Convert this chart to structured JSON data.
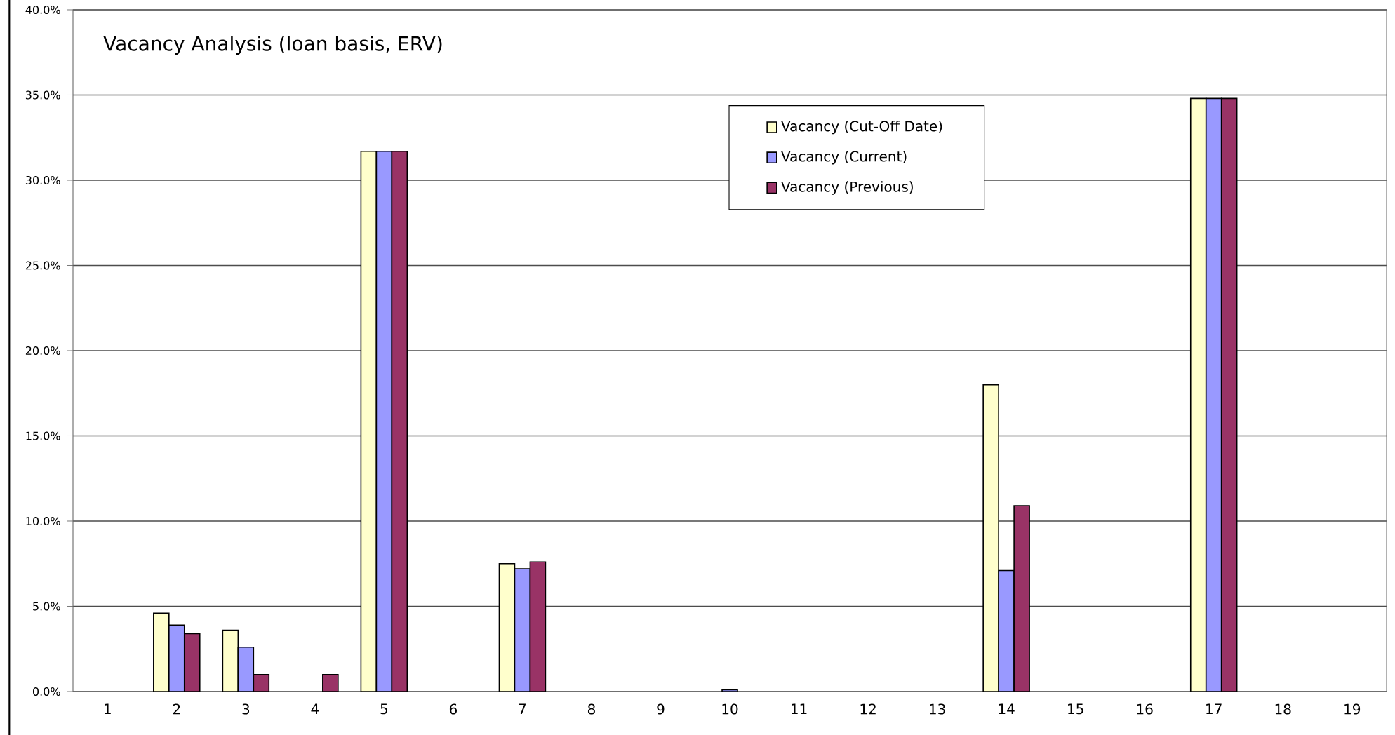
{
  "chart_data": {
    "type": "bar",
    "title": "Vacancy Analysis (loan basis, ERV)",
    "categories": [
      "1",
      "2",
      "3",
      "4",
      "5",
      "6",
      "7",
      "8",
      "9",
      "10",
      "11",
      "12",
      "13",
      "14",
      "15",
      "16",
      "17",
      "18",
      "19"
    ],
    "series": [
      {
        "name": "Vacancy (Cut-Off Date)",
        "color": "#ffffcc",
        "values": [
          0,
          4.6,
          3.6,
          0,
          31.7,
          0,
          7.5,
          0,
          0,
          0,
          0,
          0,
          0,
          18.0,
          0,
          0,
          34.8,
          0,
          0
        ]
      },
      {
        "name": "Vacancy (Current)",
        "color": "#9999ff",
        "values": [
          0,
          3.9,
          2.6,
          0,
          31.7,
          0,
          7.2,
          0,
          0,
          0.1,
          0,
          0,
          0,
          7.1,
          0,
          0,
          34.8,
          0,
          0
        ]
      },
      {
        "name": "Vacancy (Previous)",
        "color": "#993366",
        "values": [
          0,
          3.4,
          1.0,
          1.0,
          31.7,
          0,
          7.6,
          0,
          0,
          0,
          0,
          0,
          0,
          10.9,
          0,
          0,
          34.8,
          0,
          0
        ]
      }
    ],
    "ylim": [
      0,
      40
    ],
    "yticks": [
      {
        "value": 0,
        "label": "0.0%"
      },
      {
        "value": 5,
        "label": "5.0%"
      },
      {
        "value": 10,
        "label": "10.0%"
      },
      {
        "value": 15,
        "label": "15.0%"
      },
      {
        "value": 20,
        "label": "20.0%"
      },
      {
        "value": 25,
        "label": "25.0%"
      },
      {
        "value": 30,
        "label": "30.0%"
      },
      {
        "value": 35,
        "label": "35.0%"
      },
      {
        "value": 40,
        "label": "40.0%"
      }
    ],
    "grid": "y",
    "legend": "top right"
  }
}
